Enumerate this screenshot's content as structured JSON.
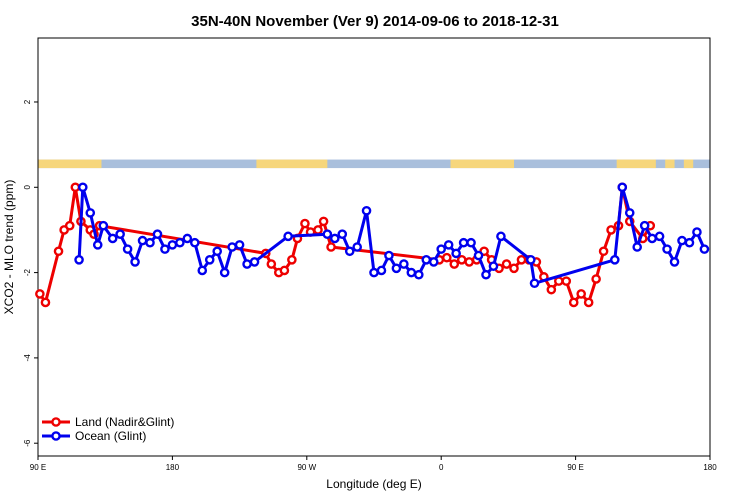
{
  "chart_data": {
    "type": "line",
    "title": "35N-40N November (Ver 9)   2014-09-06 to 2018-12-31",
    "xlabel": "Longitude (deg E)",
    "ylabel": "XCO2 - MLO trend (ppm)",
    "xlim": [
      90,
      450
    ],
    "ylim": [
      -6.3,
      3.5
    ],
    "x_ticks": [
      {
        "value": 90,
        "label": "90 E"
      },
      {
        "value": 162,
        "label": "180"
      },
      {
        "value": 234,
        "label": "90 W"
      },
      {
        "value": 306,
        "label": "0"
      },
      {
        "value": 378,
        "label": "90 E"
      },
      {
        "value": 450,
        "label": "180"
      }
    ],
    "y_ticks": [
      {
        "value": 2,
        "label": "2"
      },
      {
        "value": 0,
        "label": "0"
      },
      {
        "value": -2,
        "label": "-2"
      },
      {
        "value": -4,
        "label": "-4"
      },
      {
        "value": -6,
        "label": "-6"
      }
    ],
    "legend_position": "bottom-left",
    "surface_strip": {
      "y_range": [
        0.45,
        0.65
      ],
      "ocean_color": "#a9bfdc",
      "land_color": "#f6d67c",
      "land_segments": [
        [
          90,
          124
        ],
        [
          207,
          245
        ],
        [
          311,
          345
        ],
        [
          400,
          421
        ],
        [
          426,
          431
        ],
        [
          436,
          441
        ]
      ]
    },
    "series": [
      {
        "name": "Land (Nadir&Glint)",
        "color": "#ee0000",
        "points": [
          [
            91,
            -2.5
          ],
          [
            94,
            -2.7
          ],
          [
            101,
            -1.5
          ],
          [
            104,
            -1.0
          ],
          [
            107,
            -0.9
          ],
          [
            110,
            0.0
          ],
          [
            113,
            -0.8
          ],
          [
            118,
            -1.0
          ],
          [
            120,
            -1.1
          ],
          [
            123,
            -0.9
          ],
          [
            212,
            -1.55
          ],
          [
            215,
            -1.8
          ],
          [
            219,
            -2.0
          ],
          [
            222,
            -1.95
          ],
          [
            226,
            -1.7
          ],
          [
            229,
            -1.2
          ],
          [
            233,
            -0.85
          ],
          [
            236,
            -1.05
          ],
          [
            240,
            -1.0
          ],
          [
            243,
            -0.8
          ],
          [
            247,
            -1.4
          ],
          [
            305,
            -1.7
          ],
          [
            309,
            -1.65
          ],
          [
            313,
            -1.8
          ],
          [
            317,
            -1.7
          ],
          [
            321,
            -1.75
          ],
          [
            325,
            -1.7
          ],
          [
            329,
            -1.5
          ],
          [
            333,
            -1.7
          ],
          [
            337,
            -1.9
          ],
          [
            341,
            -1.8
          ],
          [
            345,
            -1.9
          ],
          [
            349,
            -1.7
          ],
          [
            353,
            -1.7
          ],
          [
            357,
            -1.75
          ],
          [
            361,
            -2.1
          ],
          [
            365,
            -2.4
          ],
          [
            369,
            -2.2
          ],
          [
            373,
            -2.2
          ],
          [
            377,
            -2.7
          ],
          [
            381,
            -2.5
          ],
          [
            385,
            -2.7
          ],
          [
            389,
            -2.15
          ],
          [
            393,
            -1.5
          ],
          [
            397,
            -1.0
          ],
          [
            401,
            -0.9
          ],
          [
            403,
            0.0
          ],
          [
            407,
            -0.8
          ],
          [
            414,
            -1.2
          ],
          [
            418,
            -0.9
          ]
        ]
      },
      {
        "name": "Ocean (Glint)",
        "color": "#0000ee",
        "points": [
          [
            112,
            -1.7
          ],
          [
            114,
            -0.0
          ],
          [
            118,
            -0.6
          ],
          [
            122,
            -1.35
          ],
          [
            125,
            -0.9
          ],
          [
            130,
            -1.2
          ],
          [
            134,
            -1.1
          ],
          [
            138,
            -1.45
          ],
          [
            142,
            -1.75
          ],
          [
            146,
            -1.25
          ],
          [
            150,
            -1.3
          ],
          [
            154,
            -1.1
          ],
          [
            158,
            -1.45
          ],
          [
            162,
            -1.35
          ],
          [
            166,
            -1.3
          ],
          [
            170,
            -1.2
          ],
          [
            174,
            -1.3
          ],
          [
            178,
            -1.95
          ],
          [
            182,
            -1.7
          ],
          [
            186,
            -1.5
          ],
          [
            190,
            -2.0
          ],
          [
            194,
            -1.4
          ],
          [
            198,
            -1.35
          ],
          [
            202,
            -1.8
          ],
          [
            206,
            -1.75
          ],
          [
            224,
            -1.15
          ],
          [
            245,
            -1.1
          ],
          [
            249,
            -1.2
          ],
          [
            253,
            -1.1
          ],
          [
            257,
            -1.5
          ],
          [
            261,
            -1.4
          ],
          [
            266,
            -0.55
          ],
          [
            270,
            -2.0
          ],
          [
            274,
            -1.95
          ],
          [
            278,
            -1.6
          ],
          [
            282,
            -1.9
          ],
          [
            286,
            -1.8
          ],
          [
            290,
            -2.0
          ],
          [
            294,
            -2.05
          ],
          [
            298,
            -1.7
          ],
          [
            302,
            -1.75
          ],
          [
            306,
            -1.45
          ],
          [
            310,
            -1.35
          ],
          [
            314,
            -1.55
          ],
          [
            318,
            -1.3
          ],
          [
            322,
            -1.3
          ],
          [
            326,
            -1.6
          ],
          [
            330,
            -2.05
          ],
          [
            334,
            -1.85
          ],
          [
            338,
            -1.15
          ],
          [
            354,
            -1.7
          ],
          [
            356,
            -2.25
          ],
          [
            399,
            -1.7
          ],
          [
            403,
            0.0
          ],
          [
            407,
            -0.6
          ],
          [
            411,
            -1.4
          ],
          [
            415,
            -0.9
          ],
          [
            419,
            -1.2
          ],
          [
            423,
            -1.15
          ],
          [
            427,
            -1.45
          ],
          [
            431,
            -1.75
          ],
          [
            435,
            -1.25
          ],
          [
            439,
            -1.3
          ],
          [
            443,
            -1.05
          ],
          [
            447,
            -1.45
          ]
        ]
      }
    ]
  }
}
